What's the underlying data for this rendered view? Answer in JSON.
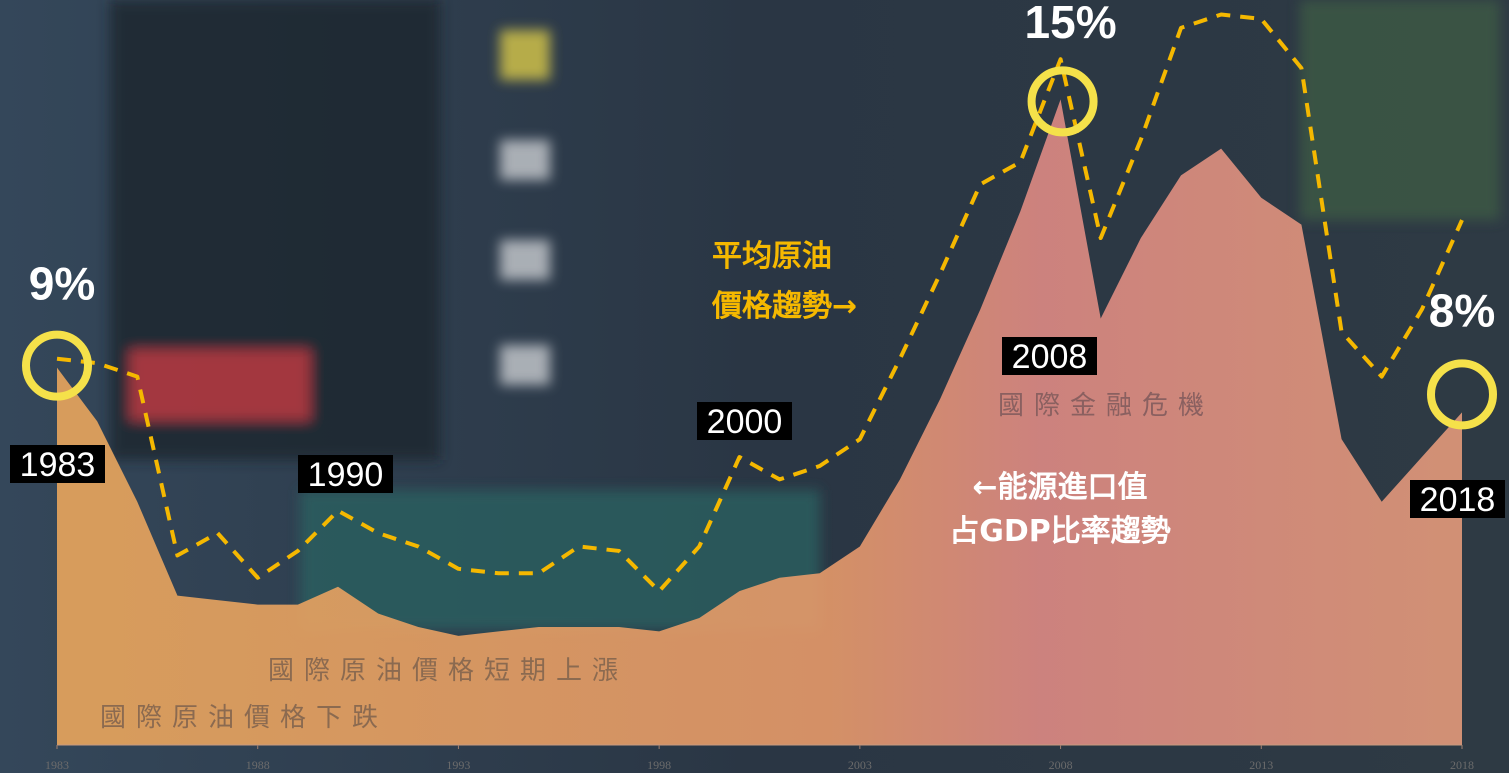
{
  "chart_data": {
    "type": "area-line",
    "x": [
      1983,
      1984,
      1985,
      1986,
      1987,
      1988,
      1989,
      1990,
      1991,
      1992,
      1993,
      1994,
      1995,
      1996,
      1997,
      1998,
      1999,
      2000,
      2001,
      2002,
      2003,
      2004,
      2005,
      2006,
      2007,
      2008,
      2009,
      2010,
      2011,
      2012,
      2013,
      2014,
      2015,
      2016,
      2017,
      2018
    ],
    "xlim": [
      1983,
      2018
    ],
    "xticks": [
      1983,
      1988,
      1993,
      1998,
      2003,
      2008,
      2013,
      2018
    ],
    "ylim": [
      0,
      17
    ],
    "series": [
      {
        "name": "←能源進口值\n占GDP比率趨勢",
        "color": "#e3976f",
        "values": [
          9,
          7.8,
          6,
          3.9,
          3.8,
          3.7,
          3.7,
          4.1,
          3.5,
          3.2,
          3,
          3.1,
          3.2,
          3.2,
          3.2,
          3.1,
          3.4,
          4,
          4.3,
          4.4,
          5,
          6.5,
          8.3,
          10.3,
          12.5,
          15,
          10.1,
          11.9,
          13.3,
          13.9,
          12.8,
          12.2,
          7.4,
          6,
          7,
          8
        ],
        "value_labels": [
          "9%",
          null,
          null,
          null,
          null,
          null,
          null,
          null,
          null,
          null,
          null,
          null,
          null,
          null,
          null,
          null,
          null,
          null,
          null,
          null,
          null,
          null,
          null,
          null,
          null,
          "15%",
          null,
          null,
          null,
          null,
          null,
          null,
          null,
          null,
          null,
          "8%"
        ]
      },
      {
        "name": "平均原油\n價格趨勢→",
        "color": "#f5b800",
        "values": [
          9.2,
          9.1,
          8.8,
          4.8,
          5.3,
          4.3,
          4.9,
          5.8,
          5.3,
          5,
          4.5,
          4.4,
          4.4,
          5,
          4.9,
          4,
          5,
          7,
          6.5,
          6.8,
          7.4,
          9.2,
          11.1,
          13.1,
          13.6,
          15.9,
          11.9,
          14.1,
          16.6,
          16.9,
          16.8,
          15.7,
          9.8,
          8.8,
          10.3,
          12.3
        ]
      }
    ],
    "year_callouts": [
      1983,
      1990,
      2000,
      2008,
      2018
    ],
    "annotations": [
      "國際原油價格下跌",
      "國際原油價格短期上漲",
      "國際金融危機"
    ]
  }
}
